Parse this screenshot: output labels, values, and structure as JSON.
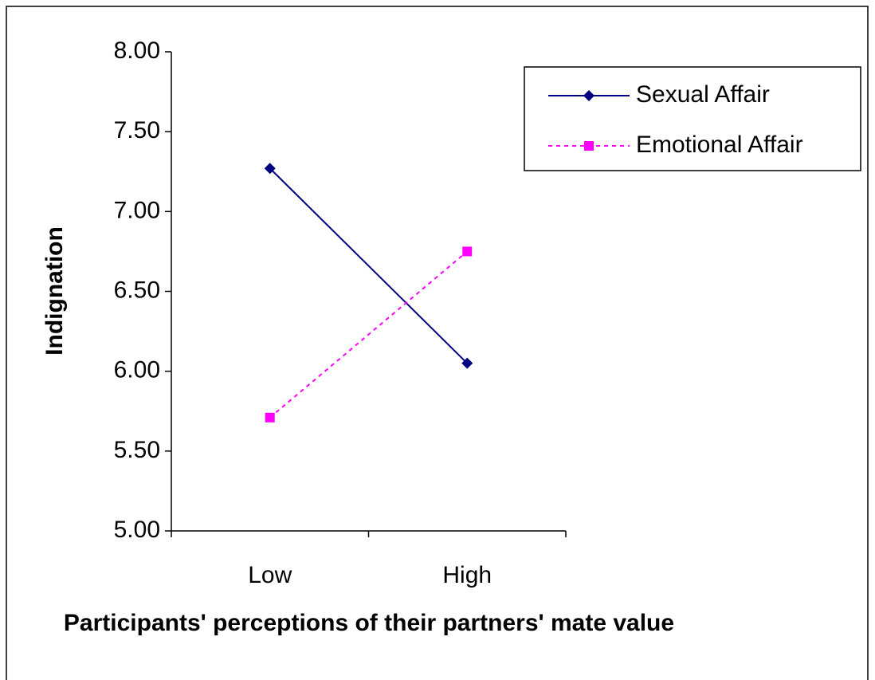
{
  "chart_data": {
    "type": "line",
    "xlabel": "Participants' perceptions of their partners' mate value",
    "ylabel": "Indignation",
    "categories": [
      "Low",
      "High"
    ],
    "series": [
      {
        "name": "Sexual Affair",
        "color": "#000080",
        "marker": "diamond",
        "line_style": "solid",
        "values": [
          7.27,
          6.05
        ]
      },
      {
        "name": "Emotional Affair",
        "color": "#ff00ff",
        "marker": "square",
        "line_style": "dotted",
        "values": [
          5.71,
          6.75
        ]
      }
    ],
    "ylim": [
      5,
      8
    ],
    "yticks": [
      {
        "value": 5,
        "label": "5.00"
      },
      {
        "value": 5.5,
        "label": "5.50"
      },
      {
        "value": 6,
        "label": "6.00"
      },
      {
        "value": 6.5,
        "label": "6.50"
      },
      {
        "value": 7,
        "label": "7.00"
      },
      {
        "value": 7.5,
        "label": "7.50"
      },
      {
        "value": 8,
        "label": "8.00"
      }
    ],
    "legend": "top-right"
  }
}
